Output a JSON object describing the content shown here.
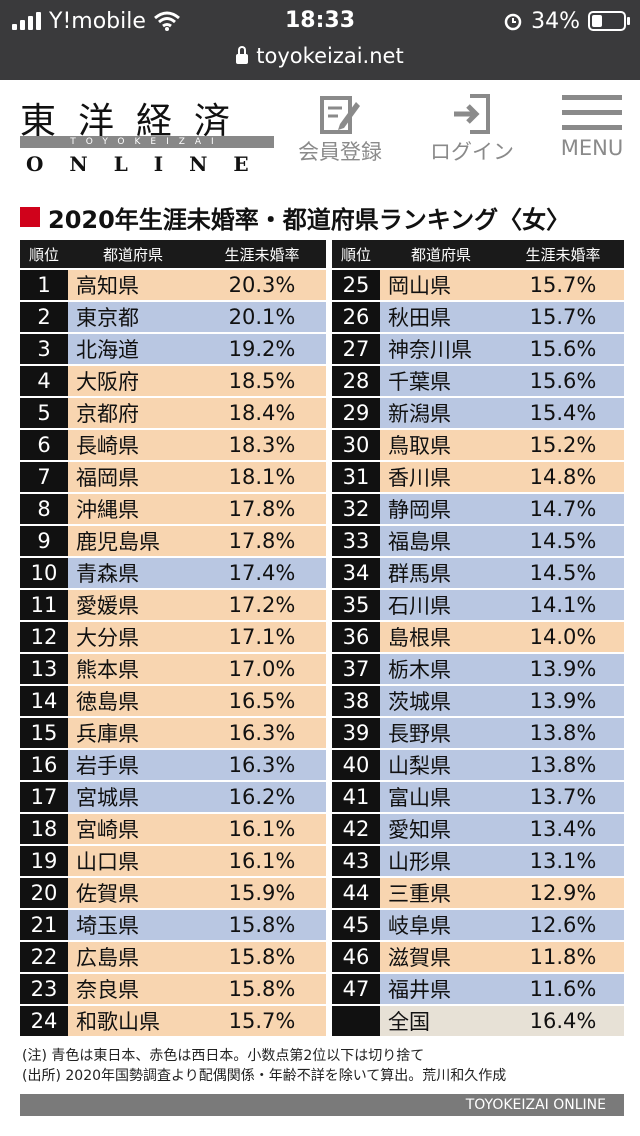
{
  "status": {
    "carrier": "Y!mobile",
    "time": "18:33",
    "battery": "34%",
    "battery_level": 0.34,
    "url": "toyokeizai.net"
  },
  "header": {
    "logo_kanji": "東洋経済",
    "logo_band": "TOYOKEIZAI",
    "logo_online": "ONLINE",
    "register": "会員登録",
    "login": "ログイン",
    "menu": "MENU"
  },
  "title": "2020年生涯未婚率・都道府県ランキング〈女〉",
  "columns": {
    "rank": "順位",
    "pref": "都道府県",
    "rate": "生涯未婚率"
  },
  "left_rows": [
    {
      "rank": "1",
      "pref": "高知県",
      "rate": "20.3%",
      "region": "W"
    },
    {
      "rank": "2",
      "pref": "東京都",
      "rate": "20.1%",
      "region": "E"
    },
    {
      "rank": "3",
      "pref": "北海道",
      "rate": "19.2%",
      "region": "E"
    },
    {
      "rank": "4",
      "pref": "大阪府",
      "rate": "18.5%",
      "region": "W"
    },
    {
      "rank": "5",
      "pref": "京都府",
      "rate": "18.4%",
      "region": "W"
    },
    {
      "rank": "6",
      "pref": "長崎県",
      "rate": "18.3%",
      "region": "W"
    },
    {
      "rank": "7",
      "pref": "福岡県",
      "rate": "18.1%",
      "region": "W"
    },
    {
      "rank": "8",
      "pref": "沖縄県",
      "rate": "17.8%",
      "region": "W"
    },
    {
      "rank": "9",
      "pref": "鹿児島県",
      "rate": "17.8%",
      "region": "W"
    },
    {
      "rank": "10",
      "pref": "青森県",
      "rate": "17.4%",
      "region": "E"
    },
    {
      "rank": "11",
      "pref": "愛媛県",
      "rate": "17.2%",
      "region": "W"
    },
    {
      "rank": "12",
      "pref": "大分県",
      "rate": "17.1%",
      "region": "W"
    },
    {
      "rank": "13",
      "pref": "熊本県",
      "rate": "17.0%",
      "region": "W"
    },
    {
      "rank": "14",
      "pref": "徳島県",
      "rate": "16.5%",
      "region": "W"
    },
    {
      "rank": "15",
      "pref": "兵庫県",
      "rate": "16.3%",
      "region": "W"
    },
    {
      "rank": "16",
      "pref": "岩手県",
      "rate": "16.3%",
      "region": "E"
    },
    {
      "rank": "17",
      "pref": "宮城県",
      "rate": "16.2%",
      "region": "E"
    },
    {
      "rank": "18",
      "pref": "宮崎県",
      "rate": "16.1%",
      "region": "W"
    },
    {
      "rank": "19",
      "pref": "山口県",
      "rate": "16.1%",
      "region": "W"
    },
    {
      "rank": "20",
      "pref": "佐賀県",
      "rate": "15.9%",
      "region": "W"
    },
    {
      "rank": "21",
      "pref": "埼玉県",
      "rate": "15.8%",
      "region": "E"
    },
    {
      "rank": "22",
      "pref": "広島県",
      "rate": "15.8%",
      "region": "W"
    },
    {
      "rank": "23",
      "pref": "奈良県",
      "rate": "15.8%",
      "region": "W"
    },
    {
      "rank": "24",
      "pref": "和歌山県",
      "rate": "15.7%",
      "region": "W"
    }
  ],
  "right_rows": [
    {
      "rank": "25",
      "pref": "岡山県",
      "rate": "15.7%",
      "region": "W"
    },
    {
      "rank": "26",
      "pref": "秋田県",
      "rate": "15.7%",
      "region": "E"
    },
    {
      "rank": "27",
      "pref": "神奈川県",
      "rate": "15.6%",
      "region": "E"
    },
    {
      "rank": "28",
      "pref": "千葉県",
      "rate": "15.6%",
      "region": "E"
    },
    {
      "rank": "29",
      "pref": "新潟県",
      "rate": "15.4%",
      "region": "E"
    },
    {
      "rank": "30",
      "pref": "鳥取県",
      "rate": "15.2%",
      "region": "W"
    },
    {
      "rank": "31",
      "pref": "香川県",
      "rate": "14.8%",
      "region": "W"
    },
    {
      "rank": "32",
      "pref": "静岡県",
      "rate": "14.7%",
      "region": "E"
    },
    {
      "rank": "33",
      "pref": "福島県",
      "rate": "14.5%",
      "region": "E"
    },
    {
      "rank": "34",
      "pref": "群馬県",
      "rate": "14.5%",
      "region": "E"
    },
    {
      "rank": "35",
      "pref": "石川県",
      "rate": "14.1%",
      "region": "E"
    },
    {
      "rank": "36",
      "pref": "島根県",
      "rate": "14.0%",
      "region": "W"
    },
    {
      "rank": "37",
      "pref": "栃木県",
      "rate": "13.9%",
      "region": "E"
    },
    {
      "rank": "38",
      "pref": "茨城県",
      "rate": "13.9%",
      "region": "E"
    },
    {
      "rank": "39",
      "pref": "長野県",
      "rate": "13.8%",
      "region": "E"
    },
    {
      "rank": "40",
      "pref": "山梨県",
      "rate": "13.8%",
      "region": "E"
    },
    {
      "rank": "41",
      "pref": "富山県",
      "rate": "13.7%",
      "region": "E"
    },
    {
      "rank": "42",
      "pref": "愛知県",
      "rate": "13.4%",
      "region": "E"
    },
    {
      "rank": "43",
      "pref": "山形県",
      "rate": "13.1%",
      "region": "E"
    },
    {
      "rank": "44",
      "pref": "三重県",
      "rate": "12.9%",
      "region": "W"
    },
    {
      "rank": "45",
      "pref": "岐阜県",
      "rate": "12.6%",
      "region": "E"
    },
    {
      "rank": "46",
      "pref": "滋賀県",
      "rate": "11.8%",
      "region": "W"
    },
    {
      "rank": "47",
      "pref": "福井県",
      "rate": "11.6%",
      "region": "E"
    },
    {
      "rank": "",
      "pref": "全国",
      "rate": "16.4%",
      "region": "N"
    }
  ],
  "colors": {
    "west": "#f8d5b0",
    "east": "#b9c7e2",
    "national": "#e7e1d6",
    "accent": "#d0021b"
  },
  "notes": [
    "(注) 青色は東日本、赤色は西日本。小数点第2位以下は切り捨て",
    "(出所) 2020年国勢調査より配偶関係・年齢不詳を除いて算出。荒川和久作成"
  ],
  "footer": "TOYOKEIZAI  ONLINE"
}
